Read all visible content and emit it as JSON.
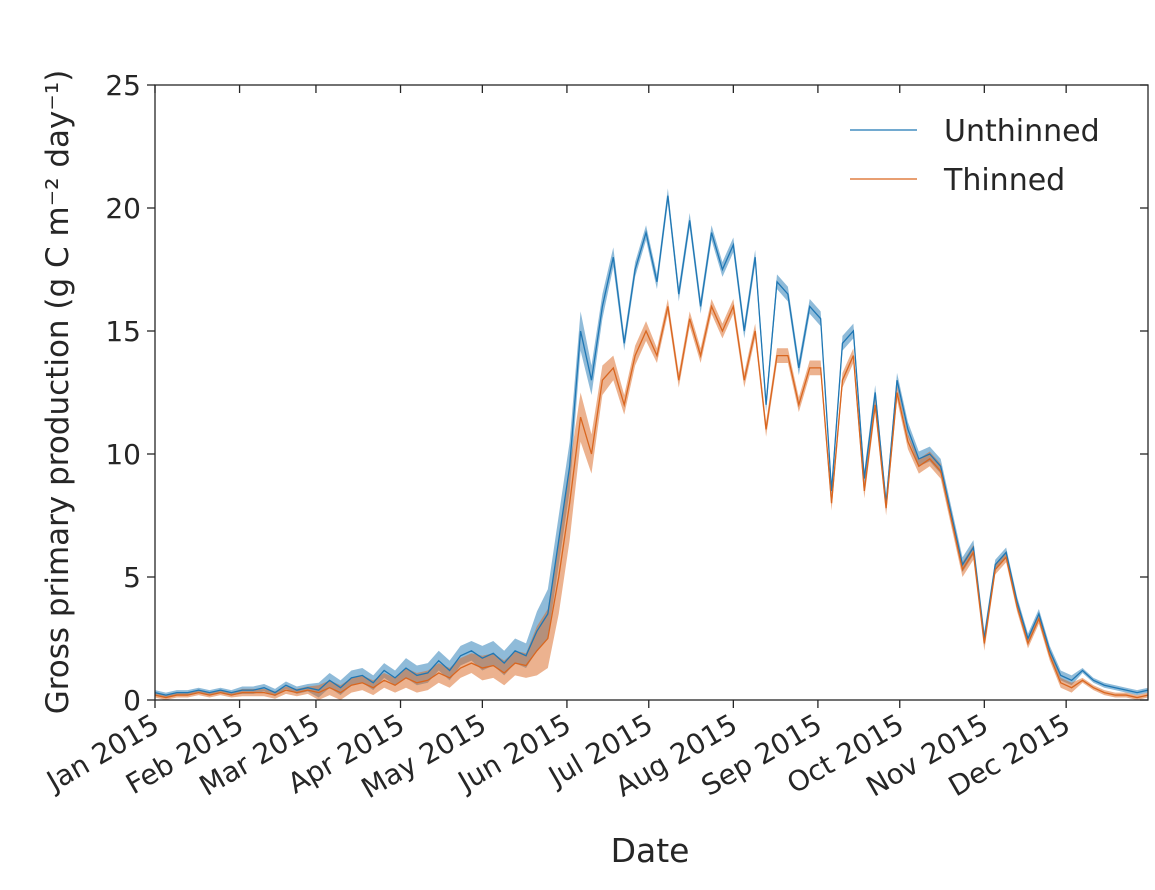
{
  "chart_data": {
    "type": "line",
    "xlabel": "Date",
    "ylabel": "Gross primary production (g C m⁻² day⁻¹)",
    "xlim": [
      0,
      364
    ],
    "xticks": [
      {
        "value": 0,
        "label": "Jan 2015"
      },
      {
        "value": 31,
        "label": "Feb 2015"
      },
      {
        "value": 59,
        "label": "Mar 2015"
      },
      {
        "value": 90,
        "label": "Apr 2015"
      },
      {
        "value": 120,
        "label": "May 2015"
      },
      {
        "value": 151,
        "label": "Jun 2015"
      },
      {
        "value": 181,
        "label": "Jul 2015"
      },
      {
        "value": 212,
        "label": "Aug 2015"
      },
      {
        "value": 243,
        "label": "Sep 2015"
      },
      {
        "value": 273,
        "label": "Oct 2015"
      },
      {
        "value": 304,
        "label": "Nov 2015"
      },
      {
        "value": 334,
        "label": "Dec 2015"
      }
    ],
    "ylim": [
      0,
      25
    ],
    "yticks": [
      0,
      5,
      10,
      15,
      20,
      25
    ],
    "legend": "upper right",
    "x": [
      0,
      4,
      8,
      12,
      16,
      20,
      24,
      28,
      32,
      36,
      40,
      44,
      48,
      52,
      56,
      60,
      64,
      68,
      72,
      76,
      80,
      84,
      88,
      92,
      96,
      100,
      104,
      108,
      112,
      116,
      120,
      124,
      128,
      132,
      136,
      140,
      144,
      148,
      152,
      156,
      160,
      164,
      168,
      172,
      176,
      180,
      184,
      188,
      192,
      196,
      200,
      204,
      208,
      212,
      216,
      220,
      224,
      228,
      232,
      236,
      240,
      244,
      248,
      252,
      256,
      260,
      264,
      268,
      272,
      276,
      280,
      284,
      288,
      292,
      296,
      300,
      304,
      308,
      312,
      316,
      320,
      324,
      328,
      332,
      336,
      340,
      344,
      348,
      352,
      356,
      360,
      364
    ],
    "series": [
      {
        "name": "Unthinned",
        "color": "#1f77b4",
        "values": [
          0.3,
          0.2,
          0.3,
          0.3,
          0.4,
          0.3,
          0.4,
          0.3,
          0.4,
          0.4,
          0.5,
          0.3,
          0.6,
          0.4,
          0.5,
          0.4,
          0.8,
          0.5,
          0.9,
          1.0,
          0.7,
          1.2,
          0.9,
          1.3,
          1.0,
          1.1,
          1.6,
          1.2,
          1.8,
          2.0,
          1.7,
          1.9,
          1.5,
          2.0,
          1.8,
          2.8,
          3.5,
          6.5,
          9.5,
          15.0,
          13.0,
          16.0,
          18.0,
          14.5,
          17.5,
          19.0,
          17.0,
          20.5,
          16.5,
          19.5,
          16.0,
          19.0,
          17.5,
          18.5,
          15.0,
          18.0,
          12.0,
          17.0,
          16.5,
          13.5,
          16.0,
          15.5,
          8.5,
          14.5,
          15.0,
          9.0,
          12.5,
          8.0,
          13.0,
          11.0,
          9.8,
          10.0,
          9.5,
          7.5,
          5.5,
          6.2,
          2.5,
          5.5,
          6.0,
          4.0,
          2.5,
          3.5,
          2.0,
          1.0,
          0.8,
          1.2,
          0.8,
          0.6,
          0.5,
          0.4,
          0.3,
          0.4
        ],
        "errors": [
          0.1,
          0.1,
          0.1,
          0.1,
          0.1,
          0.1,
          0.1,
          0.1,
          0.15,
          0.15,
          0.15,
          0.15,
          0.15,
          0.15,
          0.15,
          0.3,
          0.3,
          0.3,
          0.3,
          0.3,
          0.3,
          0.3,
          0.3,
          0.4,
          0.4,
          0.4,
          0.4,
          0.4,
          0.4,
          0.4,
          0.5,
          0.5,
          0.5,
          0.5,
          0.5,
          0.8,
          1.0,
          1.0,
          1.0,
          0.8,
          0.6,
          0.5,
          0.4,
          0.3,
          0.3,
          0.3,
          0.3,
          0.3,
          0.3,
          0.3,
          0.3,
          0.3,
          0.3,
          0.3,
          0.3,
          0.3,
          0.3,
          0.3,
          0.3,
          0.3,
          0.3,
          0.3,
          0.3,
          0.3,
          0.3,
          0.3,
          0.3,
          0.3,
          0.3,
          0.3,
          0.3,
          0.3,
          0.3,
          0.3,
          0.3,
          0.3,
          0.3,
          0.2,
          0.2,
          0.2,
          0.2,
          0.2,
          0.2,
          0.2,
          0.2,
          0.1,
          0.1,
          0.1,
          0.1,
          0.1,
          0.1,
          0.1
        ]
      },
      {
        "name": "Thinned",
        "color": "#d9661f",
        "values": [
          0.2,
          0.1,
          0.2,
          0.2,
          0.3,
          0.2,
          0.3,
          0.2,
          0.3,
          0.3,
          0.3,
          0.2,
          0.4,
          0.3,
          0.4,
          0.3,
          0.5,
          0.3,
          0.6,
          0.7,
          0.5,
          0.8,
          0.6,
          0.9,
          0.7,
          0.8,
          1.1,
          0.9,
          1.3,
          1.5,
          1.3,
          1.4,
          1.1,
          1.5,
          1.4,
          2.0,
          2.5,
          5.0,
          8.0,
          11.5,
          10.0,
          13.0,
          13.5,
          12.0,
          14.0,
          15.0,
          14.0,
          16.0,
          13.0,
          15.5,
          14.0,
          16.0,
          15.0,
          16.0,
          13.0,
          15.0,
          11.0,
          14.0,
          14.0,
          12.0,
          13.5,
          13.5,
          8.0,
          13.0,
          14.0,
          8.5,
          12.0,
          7.8,
          12.5,
          10.5,
          9.5,
          9.8,
          9.3,
          7.3,
          5.3,
          6.0,
          2.3,
          5.3,
          5.8,
          3.8,
          2.3,
          3.3,
          1.8,
          0.7,
          0.5,
          0.8,
          0.5,
          0.3,
          0.2,
          0.2,
          0.1,
          0.2
        ],
        "errors": [
          0.1,
          0.1,
          0.1,
          0.1,
          0.1,
          0.1,
          0.1,
          0.1,
          0.15,
          0.15,
          0.15,
          0.15,
          0.15,
          0.15,
          0.15,
          0.3,
          0.3,
          0.3,
          0.3,
          0.3,
          0.3,
          0.3,
          0.3,
          0.4,
          0.4,
          0.4,
          0.4,
          0.4,
          0.4,
          0.4,
          0.5,
          0.5,
          0.5,
          0.5,
          0.5,
          1.0,
          1.2,
          1.5,
          1.5,
          1.0,
          0.8,
          0.6,
          0.5,
          0.4,
          0.4,
          0.4,
          0.3,
          0.3,
          0.3,
          0.3,
          0.3,
          0.3,
          0.3,
          0.3,
          0.3,
          0.3,
          0.3,
          0.3,
          0.3,
          0.3,
          0.3,
          0.3,
          0.3,
          0.3,
          0.3,
          0.3,
          0.3,
          0.3,
          0.3,
          0.3,
          0.3,
          0.3,
          0.3,
          0.3,
          0.3,
          0.3,
          0.3,
          0.2,
          0.2,
          0.2,
          0.2,
          0.2,
          0.2,
          0.2,
          0.2,
          0.1,
          0.1,
          0.1,
          0.1,
          0.1,
          0.1,
          0.1
        ]
      }
    ]
  }
}
